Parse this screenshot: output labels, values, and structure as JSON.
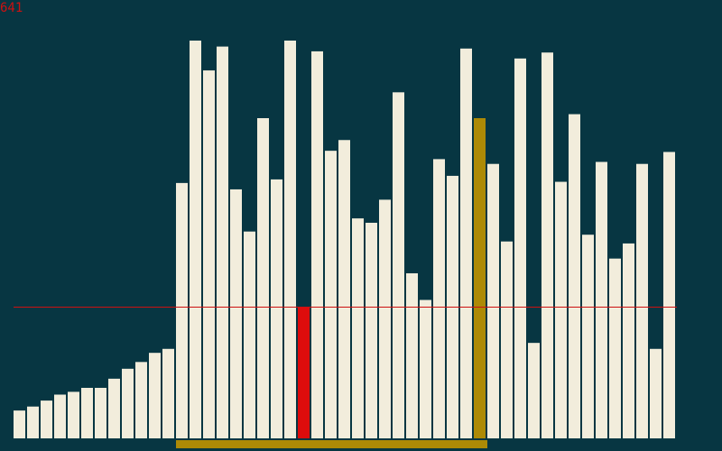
{
  "counter": "641",
  "colors": {
    "background": "#073642",
    "bar": "#f2eddc",
    "pivot": "#dd0c0c",
    "active": "#ad8a06",
    "range_marker": "#ad8a06",
    "threshold_line": "#cc1111"
  },
  "chart_data": {
    "type": "bar",
    "title": "",
    "xlabel": "",
    "ylabel": "",
    "ylim": [
      0,
      1000
    ],
    "values": [
      70,
      80,
      95,
      110,
      117,
      127,
      127,
      150,
      175,
      192,
      215,
      225,
      642,
      1000,
      925,
      985,
      626,
      520,
      805,
      651,
      1000,
      330,
      973,
      723,
      750,
      553,
      542,
      600,
      870,
      415,
      348,
      702,
      660,
      980,
      805,
      690,
      495,
      955,
      240,
      970,
      645,
      815,
      512,
      695,
      452,
      490,
      690,
      225,
      720
    ],
    "pivot_index": 21,
    "active_index": 34,
    "range_start": 12,
    "range_end": 34,
    "threshold_value": 330
  }
}
